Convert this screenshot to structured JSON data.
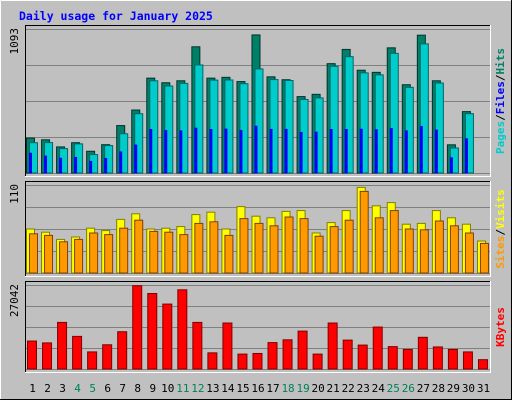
{
  "title": "Daily usage for January 2025",
  "colors": {
    "background": "#c0c0c0",
    "plot": "#c0c0c0",
    "grid": "#808080",
    "hits_fill": "#00cccc",
    "hits_edge": "#006666",
    "pages_fill": "#008066",
    "pages_edge": "#003330",
    "files_fill": "#0000ff",
    "visits_fill": "#ffff00",
    "visits_edge": "#808000",
    "sites_fill": "#ff9900",
    "sites_edge": "#804000",
    "kbytes_fill": "#ff0000",
    "kbytes_edge": "#800000",
    "title_color": "#0000ff",
    "weekend_color": "#00805c",
    "weekday_color": "#000000"
  },
  "chart_data": [
    {
      "type": "bar",
      "panel": "pages-files-hits",
      "ymax_label": "1093",
      "ylim": [
        0,
        1093
      ],
      "legend": [
        "Pages",
        "/",
        "Files",
        "/",
        "Hits"
      ],
      "categories": [
        "1",
        "2",
        "3",
        "4",
        "5",
        "6",
        "7",
        "8",
        "9",
        "10",
        "11",
        "12",
        "13",
        "14",
        "15",
        "16",
        "17",
        "18",
        "19",
        "20",
        "21",
        "22",
        "23",
        "24",
        "25",
        "26",
        "27",
        "28",
        "29",
        "30",
        "31"
      ],
      "series": [
        {
          "name": "Pages",
          "values": [
            265,
            252,
            198,
            230,
            165,
            215,
            360,
            478,
            720,
            685,
            700,
            958,
            720,
            726,
            694,
            1048,
            730,
            708,
            580,
            597,
            830,
            938,
            780,
            764,
            950,
            670,
            1046,
            700,
            214,
            466,
            0
          ]
        },
        {
          "name": "Files",
          "values": [
            150,
            128,
            112,
            118,
            88,
            110,
            160,
            212,
            330,
            322,
            320,
            340,
            330,
            333,
            323,
            355,
            331,
            331,
            308,
            310,
            330,
            330,
            332,
            328,
            337,
            320,
            353,
            326,
            115,
            260,
            0
          ]
        },
        {
          "name": "Hits",
          "values": [
            230,
            231,
            185,
            221,
            140,
            208,
            298,
            450,
            700,
            660,
            680,
            820,
            705,
            706,
            678,
            790,
            709,
            702,
            558,
            570,
            810,
            883,
            760,
            745,
            908,
            650,
            980,
            683,
            190,
            450,
            0
          ]
        }
      ]
    },
    {
      "type": "bar",
      "panel": "visits-sites",
      "ymax_label": "110",
      "ylim": [
        0,
        110
      ],
      "legend": [
        "Sites",
        "/",
        "Visits"
      ],
      "categories": [
        "1",
        "2",
        "3",
        "4",
        "5",
        "6",
        "7",
        "8",
        "9",
        "10",
        "11",
        "12",
        "13",
        "14",
        "15",
        "16",
        "17",
        "18",
        "19",
        "20",
        "21",
        "22",
        "23",
        "24",
        "25",
        "26",
        "27",
        "28",
        "29",
        "30",
        "31"
      ],
      "series": [
        {
          "name": "Visits",
          "values": [
            55,
            51,
            42,
            45,
            56,
            53,
            67,
            74,
            55,
            56,
            58,
            73,
            76,
            55,
            83,
            71,
            69,
            77,
            78,
            50,
            63,
            78,
            107,
            84,
            88,
            61,
            62,
            78,
            69,
            61,
            40
          ]
        },
        {
          "name": "Sites",
          "values": [
            49,
            47,
            39,
            42,
            50,
            48,
            56,
            66,
            52,
            51,
            48,
            62,
            64,
            47,
            68,
            62,
            59,
            70,
            68,
            46,
            58,
            66,
            102,
            69,
            78,
            55,
            54,
            65,
            59,
            50,
            37
          ]
        }
      ]
    },
    {
      "type": "bar",
      "panel": "kbytes",
      "ymax_label": "27042",
      "ylim": [
        0,
        27042
      ],
      "legend": [
        "KBytes"
      ],
      "categories": [
        "1",
        "2",
        "3",
        "4",
        "5",
        "6",
        "7",
        "8",
        "9",
        "10",
        "11",
        "12",
        "13",
        "14",
        "15",
        "16",
        "17",
        "18",
        "19",
        "20",
        "21",
        "22",
        "23",
        "24",
        "25",
        "26",
        "27",
        "28",
        "29",
        "30",
        "31"
      ],
      "series": [
        {
          "name": "KBytes",
          "values": [
            9000,
            8400,
            15000,
            10500,
            5500,
            7800,
            12000,
            26800,
            24300,
            20900,
            25500,
            15000,
            5200,
            14800,
            4800,
            5000,
            8500,
            9400,
            12200,
            4800,
            14800,
            9300,
            7700,
            13500,
            7200,
            6300,
            10200,
            7100,
            6300,
            5500,
            3000
          ]
        }
      ]
    }
  ]
}
